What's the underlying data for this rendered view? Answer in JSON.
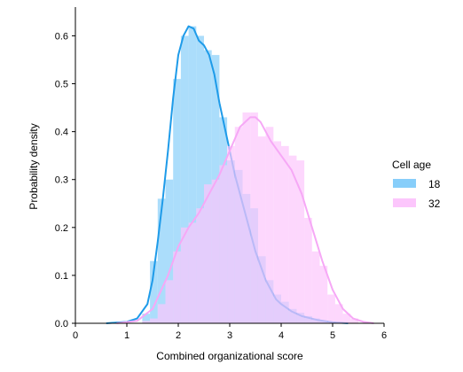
{
  "chart_data": {
    "type": "histogram_density",
    "title": "",
    "xlabel": "Combined organizational score",
    "ylabel": "Probability density",
    "xlim": [
      0,
      6
    ],
    "ylim": [
      0,
      0.66
    ],
    "xticks": [
      0,
      1,
      2,
      3,
      4,
      5,
      6
    ],
    "yticks": [
      0.0,
      0.1,
      0.2,
      0.3,
      0.4,
      0.5,
      0.6
    ],
    "ytick_labels": [
      "0.0",
      "0.1",
      "0.2",
      "0.3",
      "0.4",
      "0.5",
      "0.6"
    ],
    "grid": false,
    "legend": {
      "title": "Cell age",
      "placement": "right"
    },
    "series": [
      {
        "name": "18",
        "hist_color": "#87cefa",
        "kde_color": "#1e9be9",
        "bins": [
          [
            1.3,
            1.45,
            0.02
          ],
          [
            1.45,
            1.6,
            0.13
          ],
          [
            1.6,
            1.75,
            0.26
          ],
          [
            1.75,
            1.9,
            0.3
          ],
          [
            1.9,
            2.05,
            0.51
          ],
          [
            2.05,
            2.2,
            0.6
          ],
          [
            2.2,
            2.35,
            0.62
          ],
          [
            2.35,
            2.5,
            0.6
          ],
          [
            2.5,
            2.65,
            0.57
          ],
          [
            2.65,
            2.8,
            0.56
          ],
          [
            2.8,
            2.95,
            0.43
          ],
          [
            2.95,
            3.1,
            0.34
          ],
          [
            3.1,
            3.25,
            0.32
          ],
          [
            3.25,
            3.4,
            0.27
          ],
          [
            3.4,
            3.55,
            0.24
          ],
          [
            3.55,
            3.7,
            0.14
          ],
          [
            3.7,
            3.85,
            0.09
          ],
          [
            3.85,
            4.0,
            0.06
          ],
          [
            4.0,
            4.15,
            0.045
          ],
          [
            4.15,
            4.3,
            0.03
          ],
          [
            4.3,
            4.45,
            0.022
          ],
          [
            4.45,
            4.6,
            0.015
          ],
          [
            4.6,
            4.75,
            0.01
          ],
          [
            4.75,
            4.9,
            0.005
          ]
        ],
        "kde": [
          [
            0.6,
            0.0
          ],
          [
            1.0,
            0.003
          ],
          [
            1.2,
            0.01
          ],
          [
            1.4,
            0.04
          ],
          [
            1.5,
            0.09
          ],
          [
            1.6,
            0.17
          ],
          [
            1.7,
            0.26
          ],
          [
            1.8,
            0.36
          ],
          [
            1.9,
            0.47
          ],
          [
            2.0,
            0.56
          ],
          [
            2.1,
            0.6
          ],
          [
            2.2,
            0.62
          ],
          [
            2.3,
            0.615
          ],
          [
            2.4,
            0.59
          ],
          [
            2.5,
            0.58
          ],
          [
            2.6,
            0.56
          ],
          [
            2.7,
            0.52
          ],
          [
            2.8,
            0.46
          ],
          [
            2.9,
            0.41
          ],
          [
            3.0,
            0.36
          ],
          [
            3.1,
            0.31
          ],
          [
            3.2,
            0.27
          ],
          [
            3.3,
            0.23
          ],
          [
            3.4,
            0.19
          ],
          [
            3.5,
            0.15
          ],
          [
            3.6,
            0.12
          ],
          [
            3.7,
            0.09
          ],
          [
            3.8,
            0.07
          ],
          [
            3.9,
            0.05
          ],
          [
            4.0,
            0.04
          ],
          [
            4.2,
            0.025
          ],
          [
            4.4,
            0.015
          ],
          [
            4.7,
            0.007
          ],
          [
            5.0,
            0.002
          ],
          [
            5.3,
            0.0
          ]
        ]
      },
      {
        "name": "32",
        "hist_color": "#fcc6fc",
        "kde_color": "#f6a8f6",
        "bins": [
          [
            1.3,
            1.45,
            0.005
          ],
          [
            1.45,
            1.6,
            0.01
          ],
          [
            1.6,
            1.75,
            0.04
          ],
          [
            1.75,
            1.9,
            0.09
          ],
          [
            1.9,
            2.05,
            0.15
          ],
          [
            2.05,
            2.2,
            0.2
          ],
          [
            2.2,
            2.35,
            0.21
          ],
          [
            2.35,
            2.5,
            0.24
          ],
          [
            2.5,
            2.65,
            0.29
          ],
          [
            2.65,
            2.8,
            0.3
          ],
          [
            2.8,
            2.95,
            0.33
          ],
          [
            2.95,
            3.1,
            0.37
          ],
          [
            3.1,
            3.25,
            0.41
          ],
          [
            3.25,
            3.4,
            0.44
          ],
          [
            3.4,
            3.55,
            0.44
          ],
          [
            3.55,
            3.7,
            0.39
          ],
          [
            3.7,
            3.85,
            0.41
          ],
          [
            3.85,
            4.0,
            0.38
          ],
          [
            4.0,
            4.15,
            0.37
          ],
          [
            4.15,
            4.3,
            0.35
          ],
          [
            4.3,
            4.45,
            0.34
          ],
          [
            4.45,
            4.6,
            0.22
          ],
          [
            4.6,
            4.75,
            0.15
          ],
          [
            4.75,
            4.9,
            0.12
          ],
          [
            4.9,
            5.05,
            0.06
          ],
          [
            5.05,
            5.2,
            0.04
          ],
          [
            5.2,
            5.35,
            0.02
          ],
          [
            5.35,
            5.5,
            0.01
          ]
        ],
        "kde": [
          [
            0.8,
            0.0
          ],
          [
            1.2,
            0.005
          ],
          [
            1.5,
            0.03
          ],
          [
            1.8,
            0.1
          ],
          [
            2.0,
            0.16
          ],
          [
            2.2,
            0.2
          ],
          [
            2.4,
            0.23
          ],
          [
            2.6,
            0.27
          ],
          [
            2.8,
            0.31
          ],
          [
            3.0,
            0.36
          ],
          [
            3.2,
            0.41
          ],
          [
            3.4,
            0.43
          ],
          [
            3.5,
            0.43
          ],
          [
            3.6,
            0.42
          ],
          [
            3.8,
            0.38
          ],
          [
            4.0,
            0.35
          ],
          [
            4.2,
            0.32
          ],
          [
            4.4,
            0.27
          ],
          [
            4.6,
            0.2
          ],
          [
            4.8,
            0.13
          ],
          [
            5.0,
            0.07
          ],
          [
            5.2,
            0.03
          ],
          [
            5.4,
            0.01
          ],
          [
            5.6,
            0.003
          ],
          [
            5.8,
            0.0
          ]
        ]
      }
    ]
  }
}
